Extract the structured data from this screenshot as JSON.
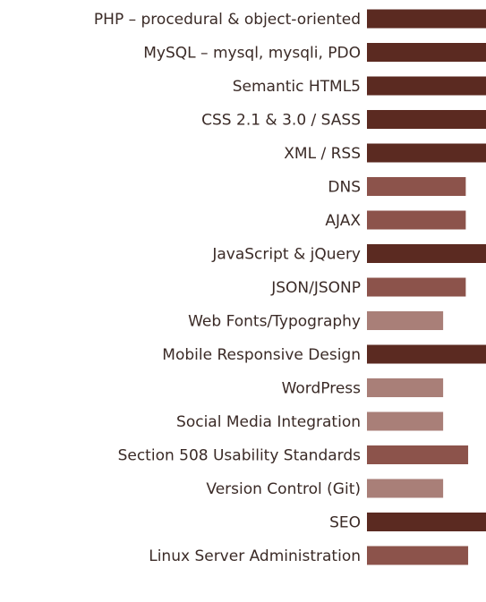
{
  "chart_data": {
    "type": "bar",
    "orientation": "horizontal",
    "categories": [
      "PHP – procedural & object-oriented",
      "MySQL – mysql, mysqli, PDO",
      "Semantic HTML5",
      "CSS 2.1 & 3.0 / SASS",
      "XML / RSS",
      "DNS",
      "AJAX",
      "JavaScript & jQuery",
      "JSON/JSONP",
      "Web Fonts/Typography",
      "Mobile Responsive Design",
      "WordPress",
      "Social Media Integration",
      "Section 508 Usability Standards",
      "Version Control (Git)",
      "SEO",
      "Linux Server Administration"
    ],
    "values": [
      100,
      100,
      100,
      100,
      100,
      83,
      83,
      100,
      83,
      64,
      100,
      64,
      64,
      85,
      64,
      100,
      85
    ],
    "colors": [
      "#5b2a21",
      "#5b2a21",
      "#5b2a21",
      "#5b2a21",
      "#5b2a21",
      "#8c534b",
      "#8c534b",
      "#5b2a21",
      "#8c534b",
      "#a97f78",
      "#5b2a21",
      "#a97f78",
      "#a97f78",
      "#8c534b",
      "#a97f78",
      "#5b2a21",
      "#8c534b"
    ],
    "xlim": [
      0,
      100
    ]
  }
}
